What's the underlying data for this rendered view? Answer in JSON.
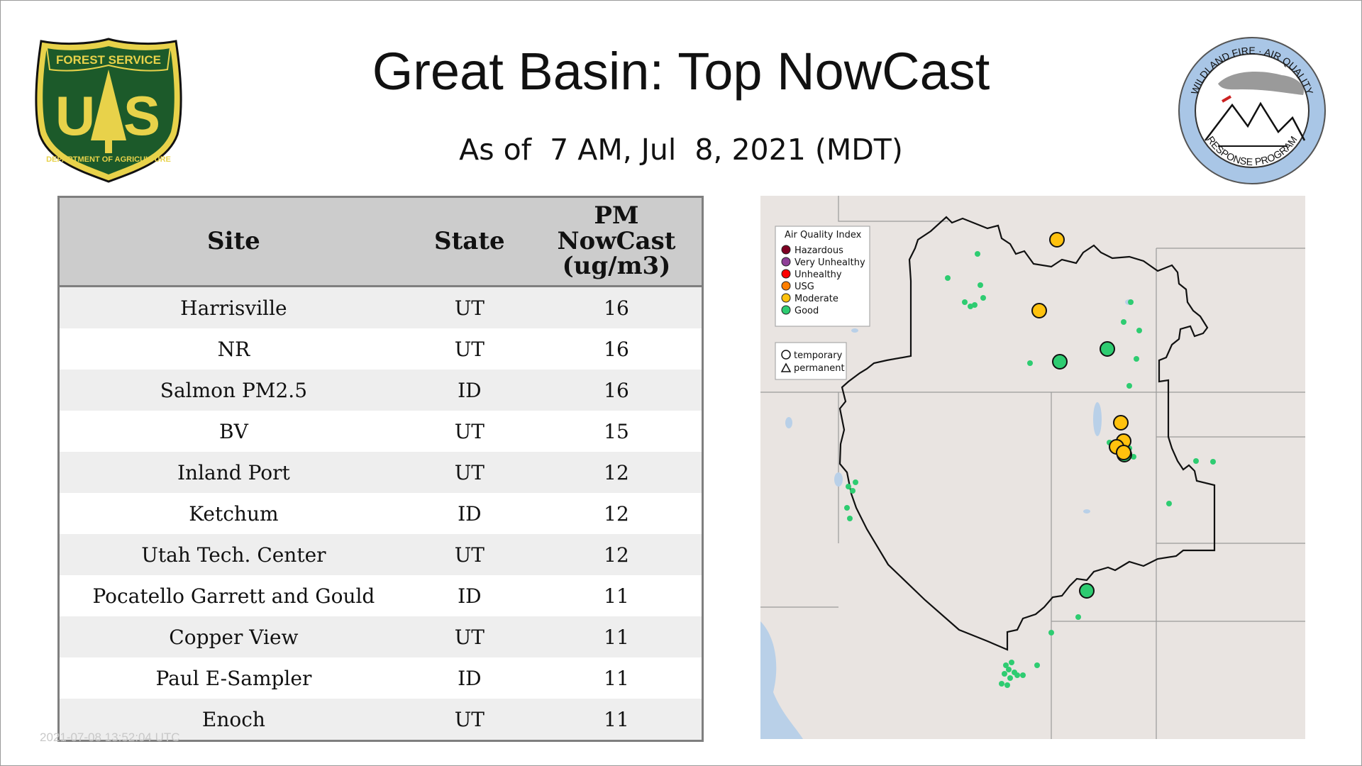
{
  "header": {
    "title": "Great Basin: Top NowCast",
    "subtitle": "As of  7 AM, Jul  8, 2021 (MDT)"
  },
  "logos": {
    "left": {
      "name": "forest-service-shield",
      "top_text": "FOREST SERVICE",
      "letters": "US",
      "bottom_text": "DEPARTMENT OF AGRICULTURE",
      "colors": {
        "green": "#1c5a2a",
        "gold": "#e8d24a",
        "outline": "#111111"
      }
    },
    "right": {
      "name": "wildland-fire-air-quality-seal",
      "top_text": "WILDLAND FIRE · AIR QUALITY",
      "bottom_text": "RESPONSE PROGRAM",
      "colors": {
        "ring": "#a9c6e6",
        "smoke": "#9a9a9a",
        "flag": "#cc2222"
      }
    }
  },
  "table": {
    "headers": {
      "site": "Site",
      "state": "State",
      "pm": [
        "PM",
        "NowCast",
        "(ug/m3)"
      ]
    },
    "rows": [
      {
        "site": "Harrisville",
        "state": "UT",
        "pm": "16"
      },
      {
        "site": "NR",
        "state": "UT",
        "pm": "16"
      },
      {
        "site": "Salmon PM2.5",
        "state": "ID",
        "pm": "16"
      },
      {
        "site": "BV",
        "state": "UT",
        "pm": "15"
      },
      {
        "site": "Inland Port",
        "state": "UT",
        "pm": "12"
      },
      {
        "site": "Ketchum",
        "state": "ID",
        "pm": "12"
      },
      {
        "site": "Utah Tech. Center",
        "state": "UT",
        "pm": "12"
      },
      {
        "site": "Pocatello Garrett and Gould",
        "state": "ID",
        "pm": "11"
      },
      {
        "site": "Copper View",
        "state": "UT",
        "pm": "11"
      },
      {
        "site": "Paul E-Sampler",
        "state": "ID",
        "pm": "11"
      },
      {
        "site": "Enoch",
        "state": "UT",
        "pm": "11"
      }
    ]
  },
  "timestamp": "2021-07-08 13:52:04 UTC",
  "map": {
    "legend": {
      "title": "Air Quality Index",
      "items": [
        {
          "label": "Hazardous",
          "color": "#7e0023"
        },
        {
          "label": "Very Unhealthy",
          "color": "#8f3f97"
        },
        {
          "label": "Unhealthy",
          "color": "#ff0000"
        },
        {
          "label": "USG",
          "color": "#ff7e00"
        },
        {
          "label": "Moderate",
          "color": "#ffc20e"
        },
        {
          "label": "Good",
          "color": "#2ecc71"
        }
      ]
    },
    "shape_legend": {
      "temporary": "temporary",
      "permanent": "permanent"
    },
    "colors": {
      "land": "#e9e4e1",
      "water": "#b9d0e8",
      "boundary": "#111111",
      "state_line": "#9a9a9a"
    }
  }
}
